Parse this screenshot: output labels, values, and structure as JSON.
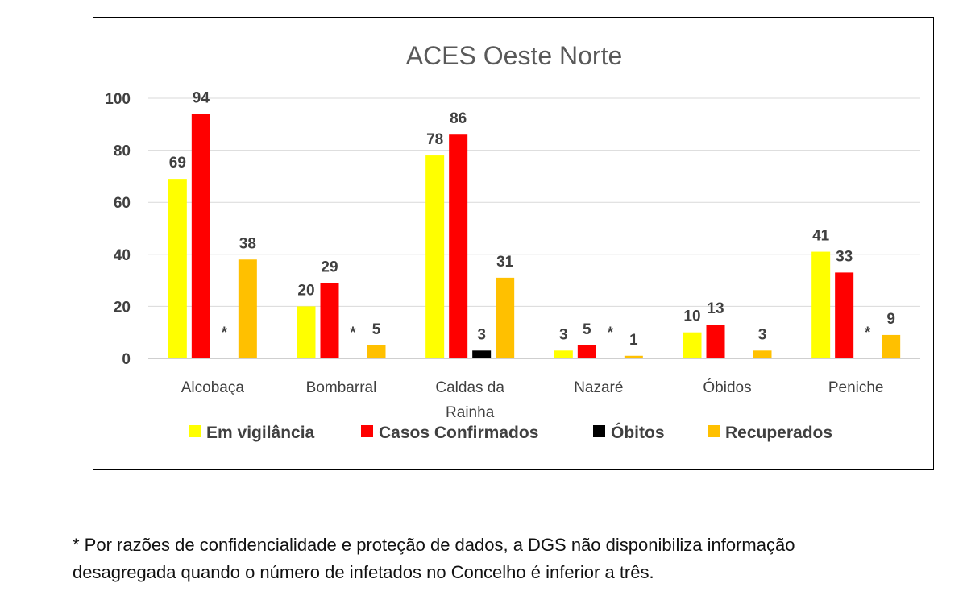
{
  "chart_data": {
    "type": "bar",
    "title": "ACES Oeste Norte",
    "categories": [
      [
        "Alcobaça"
      ],
      [
        "Bombarral"
      ],
      [
        "Caldas da",
        "Rainha"
      ],
      [
        "Nazaré"
      ],
      [
        "Óbidos"
      ],
      [
        "Peniche"
      ]
    ],
    "series": [
      {
        "name": "Em vigilância",
        "color": "#ffff00",
        "values": [
          69,
          20,
          78,
          3,
          10,
          41
        ],
        "labels": [
          "69",
          "20",
          "78",
          "3",
          "10",
          "41"
        ]
      },
      {
        "name": "Casos Confirmados",
        "color": "#ff0000",
        "values": [
          94,
          29,
          86,
          5,
          13,
          33
        ],
        "labels": [
          "94",
          "29",
          "86",
          "5",
          "13",
          "33"
        ]
      },
      {
        "name": "Óbitos",
        "color": "#000000",
        "values": [
          0,
          0,
          3,
          0,
          0,
          0
        ],
        "labels": [
          "*",
          "*",
          "3",
          "*",
          "",
          "*"
        ]
      },
      {
        "name": "Recuperados",
        "color": "#ffc000",
        "values": [
          38,
          5,
          31,
          1,
          3,
          9
        ],
        "labels": [
          "38",
          "5",
          "31",
          "1",
          "3",
          "9"
        ]
      }
    ],
    "yticks": [
      "0",
      "20",
      "40",
      "60",
      "80",
      "100"
    ],
    "ylim": [
      0,
      100
    ],
    "grid": true,
    "legend_position": "bottom"
  },
  "footnote": {
    "line1": "* Por razões de confidencialidade e proteção de dados, a DGS não disponibiliza informação",
    "line2": "desagregada quando o número de infetados no Concelho é inferior a três."
  }
}
